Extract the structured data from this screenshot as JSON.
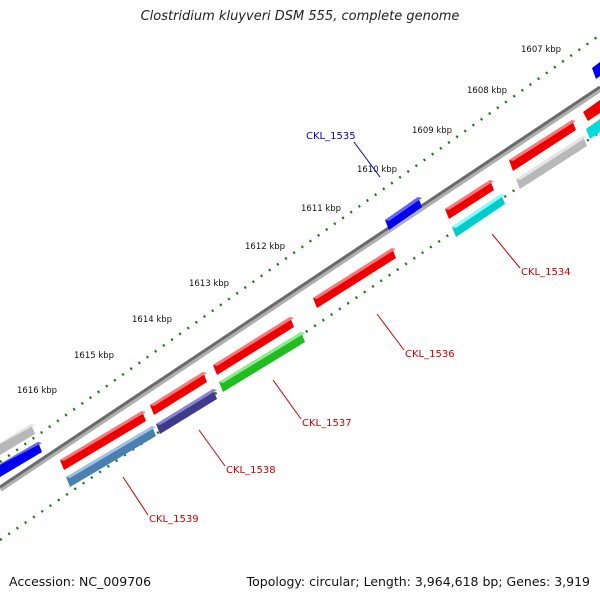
{
  "title": "Clostridium kluyveri DSM 555, complete genome",
  "footer": {
    "accession": "Accession: NC_009706",
    "summary": "Topology: circular; Length: 3,964,618 bp; Genes: 3,919"
  },
  "ticks": [
    "1607 kbp",
    "1608 kbp",
    "1609 kbp",
    "1610 kbp",
    "1611 kbp",
    "1612 kbp",
    "1613 kbp",
    "1614 kbp",
    "1615 kbp",
    "1616 kbp"
  ],
  "genes": [
    {
      "label": "CKL_1535",
      "color": "#0000cc"
    },
    {
      "label": "CKL_1534",
      "color": "#cc0000"
    },
    {
      "label": "CKL_1536",
      "color": "#cc0000"
    },
    {
      "label": "CKL_1537",
      "color": "#cc0000"
    },
    {
      "label": "CKL_1538",
      "color": "#cc0000"
    },
    {
      "label": "CKL_1539",
      "color": "#cc0000"
    }
  ],
  "colors": {
    "forward_strand": "red",
    "reverse_strand": "blue",
    "backbone": "gray",
    "tick_marks": "green",
    "feature_colors": [
      "red",
      "blue",
      "cyan",
      "gray",
      "green",
      "dark-slate-blue",
      "steel-blue"
    ]
  }
}
